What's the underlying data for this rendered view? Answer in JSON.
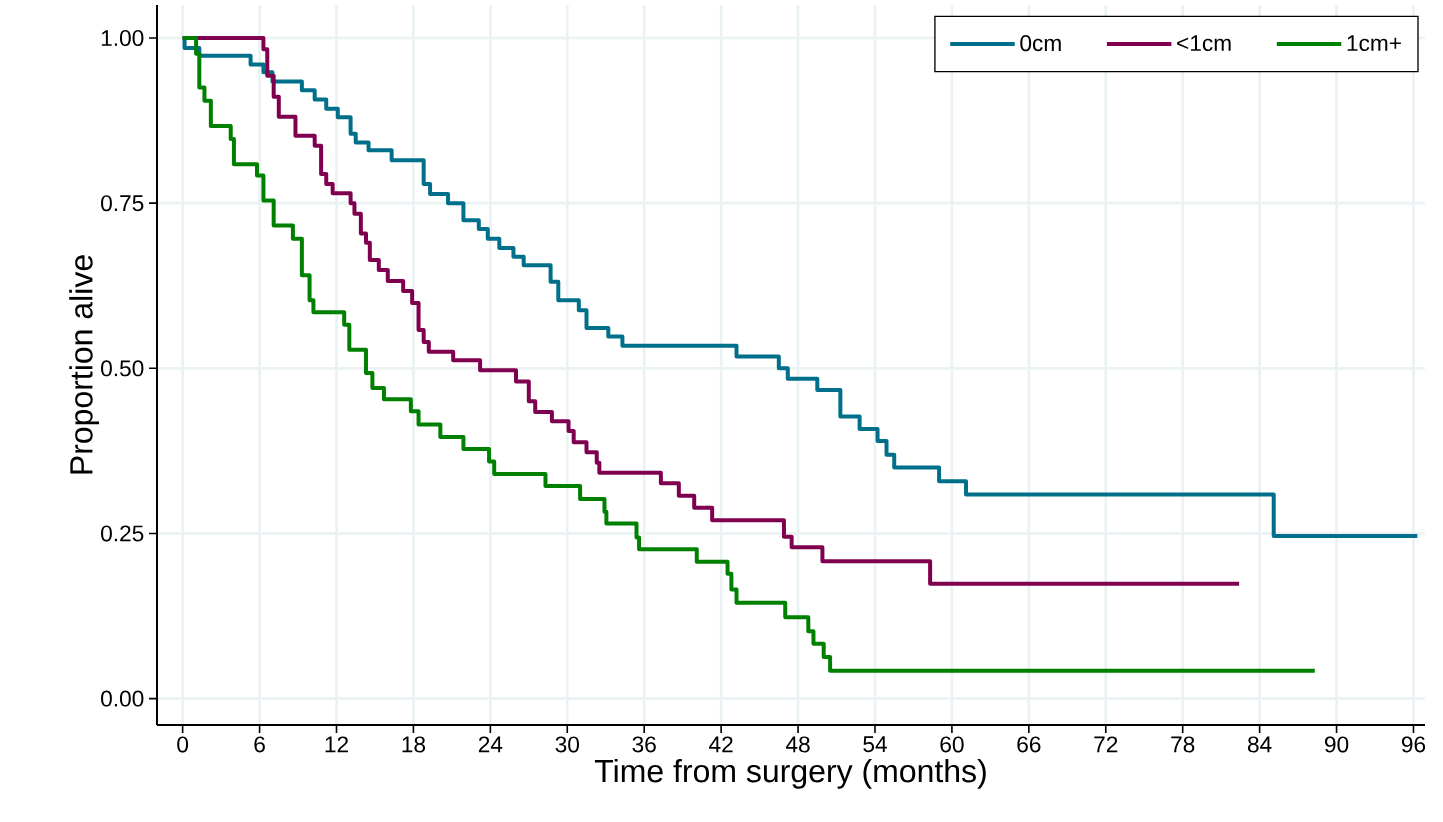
{
  "chart_data": {
    "type": "step",
    "xlabel": "Time from surgery (months)",
    "ylabel": "Proportion alive",
    "xlim": [
      -2,
      96.9
    ],
    "ylim": [
      -0.04,
      1.05
    ],
    "xticks": [
      0,
      6,
      12,
      18,
      24,
      30,
      36,
      42,
      48,
      54,
      60,
      66,
      72,
      78,
      84,
      90,
      96
    ],
    "yticks": [
      {
        "value": 0,
        "label": "0.00"
      },
      {
        "value": 0.25,
        "label": "0.25"
      },
      {
        "value": 0.5,
        "label": "0.50"
      },
      {
        "value": 0.75,
        "label": "0.75"
      },
      {
        "value": 1,
        "label": "1.00"
      }
    ],
    "grid": true,
    "legend": "top right",
    "line_style": "solid",
    "series": [
      {
        "name": "0cm",
        "color": "#00708a",
        "x": [
          0,
          0.15,
          1.3,
          5.3,
          6.3,
          7.0,
          9.3,
          10.3,
          11.2,
          12.1,
          13.1,
          13.5,
          14.5,
          16.3,
          18.8,
          19.3,
          20.7,
          21.9,
          23.1,
          23.8,
          24.7,
          25.8,
          26.6,
          28.7,
          29.3,
          30.9,
          31.5,
          33.2,
          34.3,
          43.2,
          46.5,
          47.2,
          49.5,
          51.3,
          52.8,
          54.2,
          54.9,
          55.5,
          59.0,
          61.1,
          85.1,
          96.3
        ],
        "values": [
          1,
          0.985,
          0.973,
          0.96,
          0.948,
          0.934,
          0.921,
          0.907,
          0.893,
          0.88,
          0.855,
          0.842,
          0.83,
          0.815,
          0.779,
          0.764,
          0.75,
          0.724,
          0.711,
          0.696,
          0.682,
          0.669,
          0.656,
          0.631,
          0.603,
          0.588,
          0.561,
          0.548,
          0.534,
          0.518,
          0.5,
          0.484,
          0.467,
          0.427,
          0.408,
          0.39,
          0.369,
          0.35,
          0.329,
          0.309,
          0.246,
          0.246
        ]
      },
      {
        "name": "<1cm",
        "color": "#800050",
        "x": [
          0,
          6.3,
          6.6,
          7.1,
          7.5,
          8.8,
          10.3,
          10.8,
          11.2,
          11.7,
          13.1,
          13.4,
          13.9,
          14.3,
          14.6,
          15.3,
          16.0,
          17.2,
          17.9,
          18.4,
          18.8,
          19.2,
          21.1,
          23.2,
          26.0,
          27.0,
          27.5,
          28.8,
          30.1,
          30.5,
          31.5,
          32.3,
          32.5,
          37.3,
          38.7,
          39.9,
          41.3,
          46.9,
          47.5,
          49.9,
          58.3,
          82.4
        ],
        "values": [
          1,
          0.983,
          0.943,
          0.911,
          0.881,
          0.852,
          0.837,
          0.794,
          0.779,
          0.765,
          0.75,
          0.734,
          0.704,
          0.69,
          0.664,
          0.649,
          0.632,
          0.617,
          0.599,
          0.558,
          0.54,
          0.525,
          0.512,
          0.497,
          0.48,
          0.45,
          0.434,
          0.42,
          0.405,
          0.388,
          0.373,
          0.357,
          0.342,
          0.326,
          0.307,
          0.289,
          0.27,
          0.245,
          0.229,
          0.208,
          0.174,
          0.174
        ]
      },
      {
        "name": "1cm+",
        "color": "#008000",
        "x": [
          0,
          1.05,
          1.3,
          1.7,
          2.2,
          3.75,
          4.0,
          5.8,
          6.3,
          7.1,
          8.6,
          9.3,
          9.9,
          10.2,
          12.6,
          13.0,
          14.3,
          14.8,
          15.7,
          17.8,
          18.4,
          20.1,
          21.9,
          23.9,
          24.3,
          28.3,
          31.0,
          32.9,
          33.05,
          35.4,
          35.6,
          40.1,
          42.5,
          42.8,
          43.2,
          47.0,
          48.8,
          49.2,
          50.0,
          50.5,
          88.3
        ],
        "values": [
          1,
          0.976,
          0.925,
          0.905,
          0.867,
          0.847,
          0.809,
          0.792,
          0.754,
          0.716,
          0.696,
          0.641,
          0.603,
          0.585,
          0.566,
          0.528,
          0.493,
          0.47,
          0.453,
          0.435,
          0.415,
          0.396,
          0.378,
          0.359,
          0.34,
          0.322,
          0.302,
          0.283,
          0.265,
          0.244,
          0.226,
          0.207,
          0.189,
          0.165,
          0.145,
          0.123,
          0.102,
          0.083,
          0.063,
          0.042,
          0.042
        ]
      }
    ]
  }
}
